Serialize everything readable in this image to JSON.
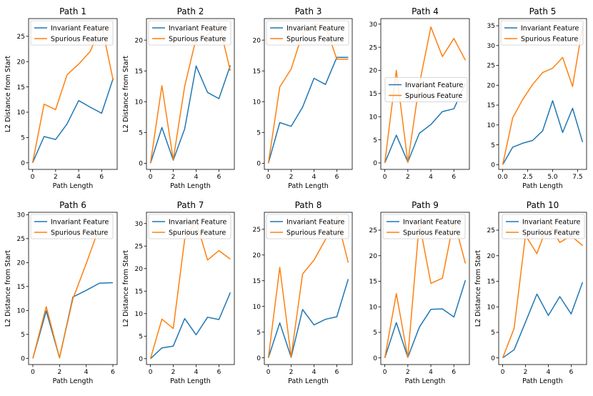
{
  "colors": {
    "invariant": "#1f77b4",
    "spurious": "#ff7f0e"
  },
  "chart_data": [
    {
      "type": "line",
      "title": "Path 1",
      "xlabel": "Path Length",
      "ylabel": "L2 Distance from Start",
      "xlim": [
        -0.35,
        7.35
      ],
      "ylim": [
        -1.3,
        28.5
      ],
      "xticks": [
        0,
        2,
        4,
        6
      ],
      "xtick_labels": [
        "0",
        "2",
        "4",
        "6"
      ],
      "yticks": [
        0,
        5,
        10,
        15,
        20,
        25
      ],
      "ytick_labels": [
        "0",
        "5",
        "10",
        "15",
        "20",
        "25"
      ],
      "legend_loc": "upper-left",
      "series": [
        {
          "name": "Invariant Feature",
          "x": [
            0,
            1,
            2,
            3,
            4,
            5,
            6,
            7
          ],
          "y": [
            0,
            5.2,
            4.6,
            7.7,
            12.3,
            11,
            9.8,
            16.7
          ]
        },
        {
          "name": "Spurious Feature",
          "x": [
            0,
            1,
            2,
            3,
            4,
            5,
            6,
            7
          ],
          "y": [
            0,
            11.6,
            10.5,
            17.4,
            19.5,
            22,
            27.2,
            16.3
          ]
        }
      ]
    },
    {
      "type": "line",
      "title": "Path 2",
      "xlabel": "Path Length",
      "ylabel": "L2 Distance from Start",
      "xlim": [
        -0.35,
        7.35
      ],
      "ylim": [
        -1.0,
        23.5
      ],
      "xticks": [
        0,
        2,
        4,
        6
      ],
      "xtick_labels": [
        "0",
        "2",
        "4",
        "6"
      ],
      "yticks": [
        0,
        5,
        10,
        15,
        20
      ],
      "ytick_labels": [
        "0",
        "5",
        "10",
        "15",
        "20"
      ],
      "legend_loc": "upper-left",
      "series": [
        {
          "name": "Invariant Feature",
          "x": [
            0,
            1,
            2,
            3,
            4,
            5,
            6,
            7
          ],
          "y": [
            0,
            5.8,
            0.5,
            5.6,
            15.8,
            11.5,
            10.5,
            15.9
          ]
        },
        {
          "name": "Spurious Feature",
          "x": [
            0,
            1,
            2,
            3,
            4,
            5,
            6,
            7
          ],
          "y": [
            0,
            12.6,
            0.6,
            12.5,
            20.3,
            20.8,
            22.8,
            15.0
          ]
        }
      ]
    },
    {
      "type": "line",
      "title": "Path 3",
      "xlabel": "Path Length",
      "ylabel": "",
      "xlim": [
        -0.35,
        7.35
      ],
      "ylim": [
        -1.0,
        23.5
      ],
      "xticks": [
        0,
        2,
        4,
        6
      ],
      "xtick_labels": [
        "0",
        "2",
        "4",
        "6"
      ],
      "yticks": [
        0,
        5,
        10,
        15,
        20
      ],
      "ytick_labels": [
        "0",
        "5",
        "10",
        "15",
        "20"
      ],
      "legend_loc": "upper-left",
      "series": [
        {
          "name": "Invariant Feature",
          "x": [
            0,
            1,
            2,
            3,
            4,
            5,
            6,
            7
          ],
          "y": [
            0,
            6.6,
            6.0,
            9.1,
            13.8,
            12.8,
            17.2,
            17.2
          ]
        },
        {
          "name": "Spurious Feature",
          "x": [
            0,
            1,
            2,
            3,
            4,
            5,
            6,
            7
          ],
          "y": [
            0,
            12.4,
            15.3,
            21.1,
            22.6,
            22.3,
            16.9,
            16.9
          ]
        }
      ]
    },
    {
      "type": "line",
      "title": "Path 4",
      "xlabel": "",
      "ylabel": "",
      "xlim": [
        -0.35,
        7.35
      ],
      "ylim": [
        -1.4,
        31.2
      ],
      "xticks": [
        0,
        2,
        4,
        6
      ],
      "xtick_labels": [
        "0",
        "2",
        "4",
        "6"
      ],
      "yticks": [
        0,
        5,
        10,
        15,
        20,
        25,
        30
      ],
      "ytick_labels": [
        "0",
        "5",
        "10",
        "15",
        "20",
        "25",
        "30"
      ],
      "legend_loc": "center-right",
      "series": [
        {
          "name": "Invariant Feature",
          "x": [
            0,
            1,
            2,
            3,
            4,
            5,
            6,
            7
          ],
          "y": [
            0,
            6.0,
            0.2,
            6.4,
            8.3,
            11.1,
            11.7,
            17.2
          ]
        },
        {
          "name": "Spurious Feature",
          "x": [
            0,
            1,
            2,
            3,
            4,
            5,
            6,
            7
          ],
          "y": [
            0,
            20.0,
            0.1,
            17.0,
            29.4,
            23.0,
            26.9,
            22.2
          ]
        }
      ]
    },
    {
      "type": "line",
      "title": "Path 5",
      "xlabel": "Path Length",
      "ylabel": "",
      "xlim": [
        -0.4,
        8.4
      ],
      "ylim": [
        -1.2,
        36.8
      ],
      "xticks": [
        0,
        2.5,
        5,
        7.5
      ],
      "xtick_labels": [
        "0.0",
        "2.5",
        "5.0",
        "7.5"
      ],
      "yticks": [
        0,
        5,
        10,
        15,
        20,
        25,
        30,
        35
      ],
      "ytick_labels": [
        "0",
        "5",
        "10",
        "15",
        "20",
        "25",
        "30",
        "35"
      ],
      "legend_loc": "upper-left",
      "series": [
        {
          "name": "Invariant Feature",
          "x": [
            0,
            1,
            2,
            3,
            4,
            5,
            6,
            7,
            8
          ],
          "y": [
            0,
            4.4,
            5.4,
            6.1,
            8.5,
            16.1,
            8.1,
            14.2,
            5.7
          ]
        },
        {
          "name": "Spurious Feature",
          "x": [
            0,
            1,
            2,
            3,
            4,
            5,
            6,
            7,
            8
          ],
          "y": [
            0,
            11.8,
            16.4,
            20.2,
            23.2,
            24.3,
            27.0,
            19.7,
            34.9
          ]
        }
      ]
    },
    {
      "type": "line",
      "title": "Path 6",
      "xlabel": "Path Length",
      "ylabel": "L2 Distance from Start",
      "xlim": [
        -0.32,
        6.32
      ],
      "ylim": [
        -1.3,
        30.5
      ],
      "xticks": [
        0,
        2,
        4,
        6
      ],
      "xtick_labels": [
        "0",
        "2",
        "4",
        "6"
      ],
      "yticks": [
        0,
        5,
        10,
        15,
        20,
        25,
        30
      ],
      "ytick_labels": [
        "0",
        "5",
        "10",
        "15",
        "20",
        "25",
        "30"
      ],
      "legend_loc": "upper-left",
      "series": [
        {
          "name": "Invariant Feature",
          "x": [
            0,
            1,
            2,
            3,
            4,
            5,
            6
          ],
          "y": [
            0,
            9.9,
            0.1,
            12.8,
            14.2,
            15.7,
            15.8
          ]
        },
        {
          "name": "Spurious Feature",
          "x": [
            0,
            1,
            2,
            3,
            4,
            5
          ],
          "y": [
            0,
            10.8,
            0.1,
            12.4,
            19.8,
            27.5
          ]
        }
      ]
    },
    {
      "type": "line",
      "title": "Path 7",
      "xlabel": "Path Length",
      "ylabel": "L2 Distance from Start",
      "xlim": [
        -0.35,
        7.35
      ],
      "ylim": [
        -1.3,
        32.5
      ],
      "xticks": [
        0,
        2,
        4,
        6
      ],
      "xtick_labels": [
        "0",
        "2",
        "4",
        "6"
      ],
      "yticks": [
        0,
        5,
        10,
        15,
        20,
        25,
        30
      ],
      "ytick_labels": [
        "0",
        "5",
        "10",
        "15",
        "20",
        "25",
        "30"
      ],
      "legend_loc": "upper-left",
      "series": [
        {
          "name": "Invariant Feature",
          "x": [
            0,
            1,
            2,
            3,
            4,
            5,
            6,
            7
          ],
          "y": [
            0,
            2.4,
            2.8,
            8.9,
            5.3,
            9.2,
            8.7,
            14.7
          ]
        },
        {
          "name": "Spurious Feature",
          "x": [
            0,
            1,
            2,
            3,
            4,
            5,
            6,
            7
          ],
          "y": [
            0,
            8.8,
            6.7,
            26.5,
            30.5,
            21.9,
            24.0,
            22.1
          ]
        }
      ]
    },
    {
      "type": "line",
      "title": "Path 8",
      "xlabel": "Path Length",
      "ylabel": "",
      "xlim": [
        -0.35,
        7.35
      ],
      "ylim": [
        -1.3,
        28.3
      ],
      "xticks": [
        0,
        2,
        4,
        6
      ],
      "xtick_labels": [
        "0",
        "2",
        "4",
        "6"
      ],
      "yticks": [
        0,
        5,
        10,
        15,
        20,
        25
      ],
      "ytick_labels": [
        "0",
        "5",
        "10",
        "15",
        "20",
        "25"
      ],
      "legend_loc": "upper-left",
      "series": [
        {
          "name": "Invariant Feature",
          "x": [
            0,
            1,
            2,
            3,
            4,
            5,
            6,
            7
          ],
          "y": [
            0,
            6.8,
            0.1,
            9.4,
            6.4,
            7.5,
            8.0,
            15.3
          ]
        },
        {
          "name": "Spurious Feature",
          "x": [
            0,
            1,
            2,
            3,
            4,
            5,
            6,
            7
          ],
          "y": [
            0,
            17.6,
            0.2,
            16.3,
            19.0,
            23.0,
            27.4,
            18.5
          ]
        }
      ]
    },
    {
      "type": "line",
      "title": "Path 9",
      "xlabel": "Path Length",
      "ylabel": "",
      "xlim": [
        -0.35,
        7.35
      ],
      "ylim": [
        -1.3,
        28.5
      ],
      "xticks": [
        0,
        2,
        4,
        6
      ],
      "xtick_labels": [
        "0",
        "2",
        "4",
        "6"
      ],
      "yticks": [
        0,
        5,
        10,
        15,
        20,
        25
      ],
      "ytick_labels": [
        "0",
        "5",
        "10",
        "15",
        "20",
        "25"
      ],
      "legend_loc": "upper-left",
      "series": [
        {
          "name": "Invariant Feature",
          "x": [
            0,
            1,
            2,
            3,
            4,
            5,
            6,
            7
          ],
          "y": [
            0,
            6.9,
            0.1,
            6.0,
            9.5,
            9.6,
            8.0,
            15.2
          ]
        },
        {
          "name": "Spurious Feature",
          "x": [
            0,
            1,
            2,
            3,
            4,
            5,
            6,
            7
          ],
          "y": [
            0,
            12.6,
            0.1,
            26.5,
            14.6,
            15.6,
            27.0,
            18.5
          ]
        }
      ]
    },
    {
      "type": "line",
      "title": "Path 10",
      "xlabel": "Path Length",
      "ylabel": "L2 Distance from Start",
      "xlim": [
        -0.35,
        7.35
      ],
      "ylim": [
        -1.3,
        28.5
      ],
      "xticks": [
        0,
        2,
        4,
        6
      ],
      "xtick_labels": [
        "0",
        "2",
        "4",
        "6"
      ],
      "yticks": [
        0,
        5,
        10,
        15,
        20,
        25
      ],
      "ytick_labels": [
        "0",
        "5",
        "10",
        "15",
        "20",
        "25"
      ],
      "legend_loc": "upper-right",
      "series": [
        {
          "name": "Invariant Feature",
          "x": [
            0,
            1,
            2,
            3,
            4,
            5,
            6,
            7
          ],
          "y": [
            0,
            1.6,
            7.0,
            12.5,
            8.3,
            12.0,
            8.6,
            14.8
          ]
        },
        {
          "name": "Spurious Feature",
          "x": [
            0,
            1,
            2,
            3,
            4,
            5,
            6,
            7
          ],
          "y": [
            0,
            5.8,
            24.0,
            20.4,
            26.5,
            22.6,
            23.9,
            22.0
          ]
        }
      ]
    }
  ]
}
